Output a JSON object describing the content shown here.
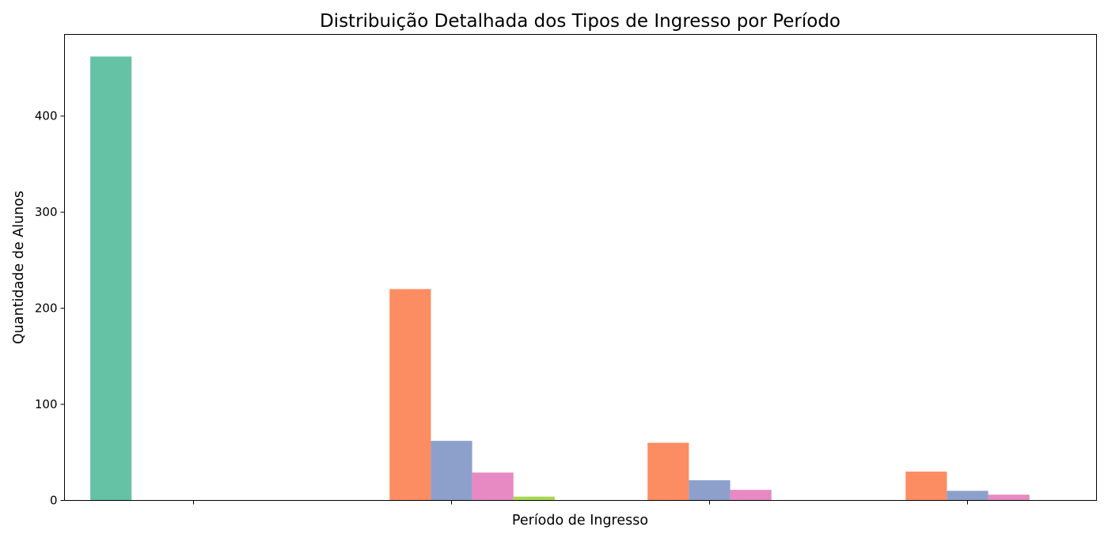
{
  "chart_data": {
    "type": "bar",
    "title": "Distribuição Detalhada dos Tipos de Ingresso por Período",
    "xlabel": "Período de Ingresso",
    "ylabel": "Quantidade de Alunos",
    "categories": [
      "",
      "",
      "",
      ""
    ],
    "ylim": [
      0,
      485
    ],
    "yticks": [
      0,
      100,
      200,
      300,
      400
    ],
    "grid": false,
    "legend": "none",
    "series": [
      {
        "color": "#66c2a5",
        "values": [
          462,
          0,
          0,
          0
        ]
      },
      {
        "color": "#fc8d62",
        "values": [
          0,
          220,
          60,
          30
        ]
      },
      {
        "color": "#8da0cb",
        "values": [
          0,
          62,
          21,
          10
        ]
      },
      {
        "color": "#e78ac3",
        "values": [
          0,
          29,
          11,
          6
        ]
      },
      {
        "color": "#a6d854",
        "values": [
          0,
          4,
          0,
          0
        ]
      }
    ]
  }
}
